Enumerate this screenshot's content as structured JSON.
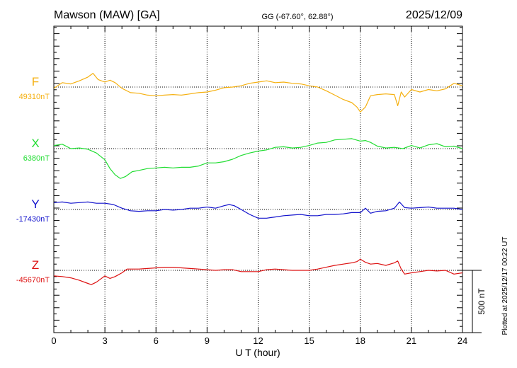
{
  "header": {
    "station": "Mawson (MAW)  [GA]",
    "coords": "GG (-67.60°,  62.88°)",
    "date": "2025/12/09"
  },
  "side_note": "Plotted at 2025/12/17 00:22 UT",
  "chart_data": {
    "type": "line",
    "title": "Mawson (MAW)  [GA]",
    "xlabel": "U T (hour)",
    "xlim": [
      0,
      24
    ],
    "xticks": [
      "0",
      "3",
      "6",
      "9",
      "12",
      "15",
      "18",
      "21",
      "24"
    ],
    "grid": true,
    "scale_bar": {
      "label": "500 nT",
      "value_nT": 500
    },
    "series": [
      {
        "name": "F",
        "baseline_label": "49310nT",
        "baseline_nT": 49310,
        "color": "#f5b010",
        "x": [
          0,
          0.5,
          1,
          1.5,
          2,
          2.3,
          2.6,
          3,
          3.3,
          3.6,
          4,
          4.5,
          5,
          5.5,
          6,
          6.5,
          7,
          7.5,
          8,
          8.5,
          9,
          9.5,
          10,
          10.5,
          11,
          11.5,
          12,
          12.5,
          13,
          13.5,
          14,
          14.5,
          15,
          15.5,
          16,
          16.5,
          17,
          17.5,
          17.8,
          18,
          18.3,
          18.6,
          19,
          19.5,
          20,
          20.2,
          20.4,
          20.6,
          21,
          21.5,
          22,
          22.5,
          23,
          23.5,
          24
        ],
        "y": [
          49300,
          49345,
          49335,
          49360,
          49390,
          49420,
          49370,
          49350,
          49365,
          49345,
          49300,
          49265,
          49260,
          49245,
          49240,
          49245,
          49250,
          49245,
          49255,
          49265,
          49270,
          49285,
          49305,
          49310,
          49320,
          49340,
          49350,
          49360,
          49345,
          49350,
          49340,
          49335,
          49320,
          49310,
          49280,
          49245,
          49210,
          49185,
          49150,
          49110,
          49150,
          49240,
          49250,
          49255,
          49250,
          49160,
          49270,
          49230,
          49290,
          49270,
          49290,
          49280,
          49295,
          49340,
          49320
        ]
      },
      {
        "name": "X",
        "baseline_label": "6380nT",
        "baseline_nT": 6380,
        "color": "#22dd33",
        "x": [
          0,
          0.5,
          1,
          1.5,
          2,
          2.5,
          3,
          3.3,
          3.6,
          3.9,
          4.2,
          4.6,
          5,
          5.5,
          6,
          6.5,
          7,
          7.5,
          8,
          8.5,
          9,
          9.5,
          10,
          10.5,
          11,
          11.5,
          12,
          12.5,
          13,
          13.5,
          14,
          14.5,
          15,
          15.5,
          16,
          16.5,
          17,
          17.5,
          18,
          18.3,
          18.6,
          19,
          19.5,
          20,
          20.5,
          21,
          21.5,
          22,
          22.5,
          23,
          23.5,
          24
        ],
        "y": [
          6405,
          6415,
          6380,
          6385,
          6375,
          6345,
          6290,
          6220,
          6170,
          6140,
          6155,
          6195,
          6205,
          6220,
          6225,
          6230,
          6225,
          6230,
          6230,
          6240,
          6265,
          6265,
          6275,
          6295,
          6325,
          6345,
          6360,
          6370,
          6390,
          6395,
          6385,
          6390,
          6405,
          6425,
          6430,
          6450,
          6455,
          6460,
          6440,
          6445,
          6430,
          6400,
          6385,
          6390,
          6380,
          6405,
          6385,
          6410,
          6420,
          6395,
          6400,
          6380
        ]
      },
      {
        "name": "Y",
        "baseline_label": "-17430nT",
        "baseline_nT": -17430,
        "color": "#1111cc",
        "x": [
          0,
          0.5,
          1,
          1.5,
          2,
          2.5,
          3,
          3.5,
          4,
          4.5,
          5,
          5.5,
          6,
          6.5,
          7,
          7.5,
          8,
          8.5,
          9,
          9.5,
          10,
          10.3,
          10.6,
          11,
          11.5,
          12,
          12.5,
          13,
          13.5,
          14,
          14.5,
          15,
          15.5,
          16,
          16.5,
          17,
          17.5,
          18,
          18.3,
          18.6,
          19,
          19.5,
          20,
          20.3,
          20.6,
          21,
          21.5,
          22,
          22.5,
          23,
          23.5,
          24
        ],
        "y": [
          -17375,
          -17370,
          -17380,
          -17375,
          -17370,
          -17380,
          -17380,
          -17390,
          -17420,
          -17440,
          -17445,
          -17440,
          -17440,
          -17430,
          -17435,
          -17430,
          -17420,
          -17420,
          -17410,
          -17420,
          -17400,
          -17390,
          -17400,
          -17430,
          -17470,
          -17500,
          -17500,
          -17490,
          -17480,
          -17475,
          -17470,
          -17480,
          -17480,
          -17470,
          -17470,
          -17465,
          -17455,
          -17455,
          -17420,
          -17460,
          -17445,
          -17440,
          -17420,
          -17370,
          -17415,
          -17420,
          -17415,
          -17410,
          -17420,
          -17420,
          -17420,
          -17430
        ]
      },
      {
        "name": "Z",
        "baseline_label": "-45670nT",
        "baseline_nT": -45670,
        "color": "#dd1111",
        "x": [
          0,
          0.5,
          1,
          1.5,
          2,
          2.2,
          2.5,
          3,
          3.3,
          3.6,
          4,
          4.3,
          5,
          5.5,
          6,
          6.5,
          7,
          7.5,
          8,
          8.5,
          9,
          9.5,
          10,
          10.5,
          11,
          11.5,
          12,
          12.5,
          13,
          13.5,
          14,
          14.5,
          15,
          15.5,
          16,
          16.5,
          17,
          17.5,
          17.8,
          18,
          18.3,
          18.6,
          19,
          19.5,
          20,
          20.2,
          20.4,
          20.6,
          21,
          21.5,
          22,
          22.5,
          23,
          23.5,
          24
        ],
        "y": [
          -45715,
          -45720,
          -45730,
          -45750,
          -45775,
          -45785,
          -45765,
          -45715,
          -45735,
          -45720,
          -45690,
          -45660,
          -45660,
          -45655,
          -45650,
          -45645,
          -45645,
          -45650,
          -45655,
          -45660,
          -45665,
          -45670,
          -45665,
          -45665,
          -45680,
          -45680,
          -45680,
          -45665,
          -45660,
          -45665,
          -45670,
          -45670,
          -45670,
          -45660,
          -45645,
          -45630,
          -45620,
          -45610,
          -45600,
          -45580,
          -45605,
          -45620,
          -45615,
          -45630,
          -45610,
          -45595,
          -45660,
          -45700,
          -45690,
          -45680,
          -45670,
          -45675,
          -45670,
          -45700,
          -45690
        ]
      }
    ]
  }
}
